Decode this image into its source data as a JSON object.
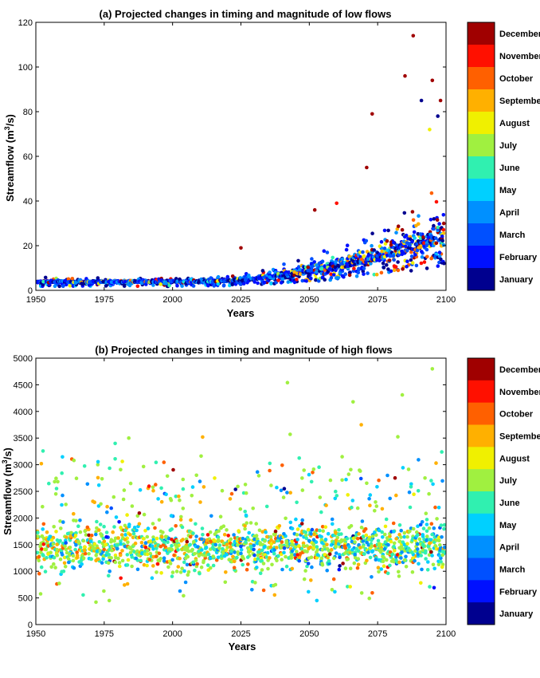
{
  "month_names": [
    "January",
    "February",
    "March",
    "April",
    "May",
    "June",
    "July",
    "August",
    "September",
    "October",
    "November",
    "December"
  ],
  "month_colors": [
    "#00008f",
    "#0010ff",
    "#0050ff",
    "#0090ff",
    "#00d0ff",
    "#30f0b0",
    "#a0f040",
    "#f0f000",
    "#ffb000",
    "#ff6000",
    "#ff1000",
    "#a00000"
  ],
  "chart_data": [
    {
      "type": "scatter",
      "title": "(a) Projected changes in timing and magnitude of low flows",
      "xlabel": "Years",
      "ylabel": "Streamflow (m3/s)",
      "ylabel_main": "Streamflow (m",
      "ylabel_sup": "3",
      "ylabel_end": "/s)",
      "xlim": [
        1950,
        2100
      ],
      "ylim": [
        0,
        120
      ],
      "xticks": [
        1950,
        1975,
        2000,
        2025,
        2050,
        2075,
        2100
      ],
      "yticks": [
        0,
        20,
        40,
        60,
        80,
        100,
        120
      ],
      "legend": {
        "placement": "right-colorbar",
        "entries": [
          "January",
          "February",
          "March",
          "April",
          "May",
          "June",
          "July",
          "August",
          "September",
          "October",
          "November",
          "December"
        ]
      },
      "highlighted_points": [
        {
          "x": 2088,
          "y": 114,
          "month": "December"
        },
        {
          "x": 2085,
          "y": 96,
          "month": "December"
        },
        {
          "x": 2095,
          "y": 94,
          "month": "December"
        },
        {
          "x": 2098,
          "y": 85,
          "month": "December"
        },
        {
          "x": 2073,
          "y": 79,
          "month": "December"
        },
        {
          "x": 2091,
          "y": 85,
          "month": "January"
        },
        {
          "x": 2097,
          "y": 78,
          "month": "January"
        },
        {
          "x": 2094,
          "y": 72,
          "month": "August"
        },
        {
          "x": 2071,
          "y": 55,
          "month": "December"
        },
        {
          "x": 2060,
          "y": 39,
          "month": "November"
        },
        {
          "x": 2052,
          "y": 36,
          "month": "December"
        },
        {
          "x": 2025,
          "y": 19,
          "month": "December"
        }
      ],
      "trend": "Low flows stay near 2-7 m3/s from 1950 to 2010, then rise with increasing spread to 10-80 m3/s by 2100, with later-year points shifting toward August-December timing."
    },
    {
      "type": "scatter",
      "title": "(b) Projected changes in timing and magnitude of high flows",
      "xlabel": "Years",
      "ylabel": "Streamflow (m3/s)",
      "ylabel_main": "Streamflow (m",
      "ylabel_sup": "3",
      "ylabel_end": "/s)",
      "xlim": [
        1950,
        2100
      ],
      "ylim": [
        0,
        5000
      ],
      "xticks": [
        1950,
        1975,
        2000,
        2025,
        2050,
        2075,
        2100
      ],
      "yticks": [
        0,
        500,
        1000,
        1500,
        2000,
        2500,
        3000,
        3500,
        4000,
        4500,
        5000
      ],
      "legend": {
        "placement": "right-colorbar",
        "entries": [
          "January",
          "February",
          "March",
          "April",
          "May",
          "June",
          "July",
          "August",
          "September",
          "October",
          "November",
          "December"
        ]
      },
      "highlighted_points": [
        {
          "x": 2095,
          "y": 4800,
          "month": "July"
        },
        {
          "x": 2042,
          "y": 4540,
          "month": "July"
        },
        {
          "x": 2084,
          "y": 4310,
          "month": "July"
        },
        {
          "x": 2066,
          "y": 4180,
          "month": "July"
        },
        {
          "x": 2069,
          "y": 3750,
          "month": "September"
        },
        {
          "x": 2011,
          "y": 3520,
          "month": "September"
        },
        {
          "x": 1984,
          "y": 3500,
          "month": "July"
        },
        {
          "x": 2043,
          "y": 3570,
          "month": "July"
        },
        {
          "x": 1979,
          "y": 3400,
          "month": "June"
        },
        {
          "x": 1952,
          "y": 3020,
          "month": "September"
        },
        {
          "x": 1972,
          "y": 420,
          "month": "July"
        },
        {
          "x": 2004,
          "y": 540,
          "month": "July"
        }
      ],
      "trend": "High flows scatter mostly between 800 and 2200 m3/s across 1950-2100, with peak timing dominated by June-September; early years show more September-October events, later years more May-July events."
    }
  ]
}
